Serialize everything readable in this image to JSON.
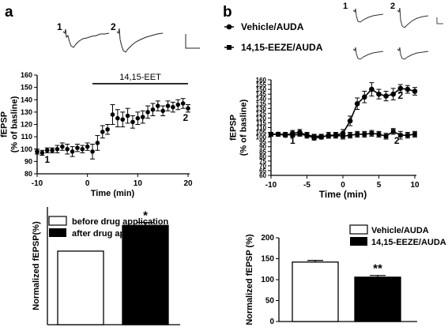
{
  "panels": {
    "a": {
      "label": "a"
    },
    "b": {
      "label": "b"
    }
  },
  "trace_labels": {
    "a": [
      "1",
      "2"
    ],
    "b": [
      "1",
      "2"
    ]
  },
  "chart_data": [
    {
      "id": "a_timecourse",
      "type": "scatter",
      "ylabel": "fEPSP\n(% of basline)",
      "xlabel": "Time (min)",
      "xlim": [
        -10,
        20
      ],
      "ylim": [
        80,
        160
      ],
      "x_ticks": [
        -10,
        0,
        10,
        20
      ],
      "y_ticks": [
        80,
        90,
        100,
        110,
        120,
        130,
        140,
        150,
        160
      ],
      "annotations": [
        {
          "text": "14,15-EET",
          "kind": "drug-bar",
          "x_start": 1,
          "x_end": 20,
          "y": 153
        },
        {
          "text": "1",
          "x": -8,
          "y": 89
        },
        {
          "text": "2",
          "x": 19.5,
          "y": 123
        }
      ],
      "series": [
        {
          "marker": "circle",
          "x": [
            -10,
            -9,
            -8,
            -7,
            -6,
            -5,
            -4,
            -3,
            -2,
            -1,
            0,
            1,
            2,
            3,
            4,
            5,
            6,
            7,
            8,
            9,
            10,
            11,
            12,
            13,
            14,
            15,
            16,
            17,
            18,
            19,
            20
          ],
          "y": [
            98,
            97,
            99,
            99,
            100,
            102,
            100,
            98,
            101,
            100,
            102,
            98,
            105,
            114,
            116,
            128,
            125,
            124,
            127,
            122,
            125,
            126,
            130,
            132,
            135,
            131,
            135,
            134,
            136,
            137,
            133
          ],
          "err": [
            2,
            2,
            2,
            2,
            3,
            3,
            4,
            4,
            3,
            3,
            3,
            6,
            6,
            5,
            4,
            8,
            7,
            6,
            6,
            5,
            5,
            5,
            5,
            5,
            4,
            4,
            4,
            4,
            4,
            4,
            3
          ]
        }
      ]
    },
    {
      "id": "a_bar",
      "type": "bar",
      "ylabel": "Normalized fEPSP(%)",
      "categories": [
        "before drug application",
        "after drug application"
      ],
      "values": [
        100,
        135
      ],
      "err": [
        0,
        4
      ],
      "ylim": [
        0,
        160
      ],
      "colors": [
        "#ffffff",
        "#000000"
      ],
      "significance": [
        "",
        "*"
      ],
      "legend": [
        "before drug application",
        "after drug application"
      ]
    },
    {
      "id": "b_timecourse",
      "type": "line",
      "ylabel": "fEPSP\n(% of basline)",
      "xlabel": "Time (min)",
      "xlim": [
        -10,
        10
      ],
      "ylim": [
        60,
        160
      ],
      "x_ticks": [
        -10,
        -5,
        0,
        5,
        10
      ],
      "y_ticks": [
        60,
        65,
        70,
        75,
        80,
        85,
        90,
        95,
        100,
        105,
        110,
        115,
        120,
        125,
        130,
        135,
        140,
        145,
        150,
        155,
        160
      ],
      "annotations": [
        {
          "text": "1",
          "x": -7,
          "y": 93
        },
        {
          "text": "2",
          "x": 8,
          "y": 140
        },
        {
          "text": "2",
          "x": 7.5,
          "y": 93
        }
      ],
      "series": [
        {
          "name": "Vehicle/AUDA",
          "marker": "circle",
          "x": [
            -10,
            -9,
            -8,
            -7,
            -6,
            -5,
            -4,
            -3,
            -2,
            -1,
            0,
            1,
            2,
            3,
            4,
            5,
            6,
            7,
            8,
            9,
            10
          ],
          "y": [
            103,
            103,
            102,
            104,
            105,
            102,
            99,
            100,
            102,
            102,
            104,
            117,
            135,
            142,
            150,
            145,
            143,
            145,
            151,
            150,
            148
          ],
          "err": [
            2,
            2,
            2,
            3,
            3,
            3,
            2,
            2,
            3,
            3,
            4,
            5,
            6,
            6,
            7,
            5,
            5,
            6,
            4,
            4,
            4
          ]
        },
        {
          "name": "14,15-EEZE/AUDA",
          "marker": "square",
          "x": [
            -10,
            -9,
            -8,
            -7,
            -6,
            -5,
            -4,
            -3,
            -2,
            -1,
            0,
            1,
            2,
            3,
            4,
            5,
            6,
            7,
            8,
            9,
            10
          ],
          "y": [
            103,
            103,
            103,
            102,
            103,
            102,
            101,
            101,
            101,
            102,
            101,
            102,
            103,
            103,
            104,
            103,
            101,
            106,
            102,
            102,
            103
          ],
          "err": [
            2,
            2,
            2,
            2,
            2,
            2,
            2,
            2,
            2,
            2,
            3,
            3,
            3,
            3,
            3,
            3,
            3,
            3,
            4,
            3,
            3
          ]
        }
      ],
      "legend": [
        "Vehicle/AUDA",
        "14,15-EEZE/AUDA"
      ]
    },
    {
      "id": "b_bar",
      "type": "bar",
      "ylabel": "Normalized fEPSP (%)",
      "categories": [
        "Vehicle/AUDA",
        "14,15-EEZE/AUDA"
      ],
      "values": [
        142,
        106
      ],
      "err": [
        4,
        4
      ],
      "ylim": [
        0,
        200
      ],
      "y_ticks": [
        0,
        50,
        100,
        150,
        200
      ],
      "colors": [
        "#ffffff",
        "#000000"
      ],
      "significance": [
        "",
        "**"
      ],
      "legend": [
        "Vehicle/AUDA",
        "14,15-EEZE/AUDA"
      ]
    }
  ]
}
